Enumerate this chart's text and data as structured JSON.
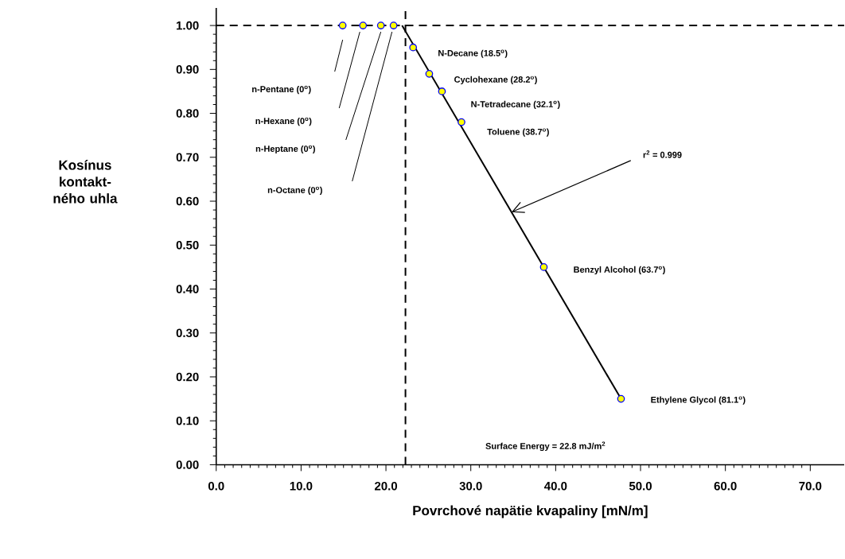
{
  "chart_data": {
    "type": "scatter",
    "xlabel": "Povrchové napätie kvapaliny [mN/m]",
    "ylabel": "Kosínus kontakt-ného uhla",
    "series": [
      {
        "color": "#ffff00",
        "marker": "circle",
        "x": [
          14.9,
          17.3,
          19.4,
          20.9,
          23.2,
          25.1,
          26.6,
          28.9,
          38.6,
          47.7
        ],
        "values": [
          1.0,
          1.0,
          1.0,
          1.0,
          0.95,
          0.89,
          0.85,
          0.78,
          0.45,
          0.15
        ]
      },
      {
        "type": "line",
        "color": "#000000",
        "marker": "none",
        "line_style": "solid",
        "x": [
          21.9,
          47.7
        ],
        "values": [
          1.0,
          0.15
        ]
      }
    ],
    "xlim": [
      0,
      74
    ],
    "ylim": [
      0,
      1.04
    ],
    "xticks": [
      {
        "value": 0,
        "label": "0.0"
      },
      {
        "value": 10,
        "label": "10.0"
      },
      {
        "value": 20,
        "label": "20.0"
      },
      {
        "value": 30,
        "label": "30.0"
      },
      {
        "value": 40,
        "label": "40.0"
      },
      {
        "value": 50,
        "label": "50.0"
      },
      {
        "value": 60,
        "label": "60.0"
      },
      {
        "value": 70,
        "label": "70.0"
      }
    ],
    "yticks": [
      {
        "value": 0,
        "label": "0.00"
      },
      {
        "value": 0.1,
        "label": "0.10"
      },
      {
        "value": 0.2,
        "label": "0.20"
      },
      {
        "value": 0.3,
        "label": "0.30"
      },
      {
        "value": 0.4,
        "label": "0.40"
      },
      {
        "value": 0.5,
        "label": "0.50"
      },
      {
        "value": 0.6,
        "label": "0.60"
      },
      {
        "value": 0.7,
        "label": "0.70"
      },
      {
        "value": 0.8,
        "label": "0.80"
      },
      {
        "value": 0.9,
        "label": "0.90"
      },
      {
        "value": 1.0,
        "label": "1.00"
      }
    ],
    "ref_lines": [
      {
        "axis": "y",
        "value": 1.0,
        "color": "#000000",
        "line_style": "dashed"
      },
      {
        "axis": "x",
        "value": 22.3,
        "color": "#000000",
        "line_style": "dashed"
      }
    ],
    "annotations": [
      "n-Pentane (0$^{o}$)",
      "n-Hexane (0$^{o}$)",
      "n-Heptane (0$^{o}$)",
      "n-Octane (0$^{o}$)",
      "N-Decane (18.5$^{o}$)",
      "Cyclohexane (28.2$^{o}$)",
      "N-Tetradecane (32.1$^{o}$)",
      "Toluene (38.7$^{o}$)",
      "Benzyl Alcohol (63.7$^{o}$)",
      "Ethylene Glycol (81.1$^{o}$)",
      "r$^{2}$ = 0.999",
      "Surface Energy = 22.8 mJ/m$^{2}$"
    ],
    "grid": false
  }
}
